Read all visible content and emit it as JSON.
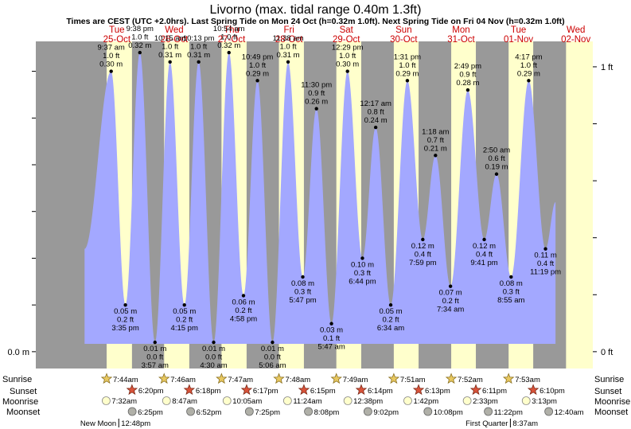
{
  "title": "Livorno (max. tidal range 0.40m 1.3ft)",
  "subtitle": "Times are CEST (UTC +2.0hrs). Last Spring Tide on Mon 24 Oct (h=0.32m 1.0ft). Next Spring Tide on Fri 04 Nov (h=0.32m 1.0ft)",
  "colors": {
    "night": "#999999",
    "day": "#ffffcc",
    "tide": "#a3a8ff",
    "day_label": "#cc0000"
  },
  "row_labels": {
    "sunrise": "Sunrise",
    "sunset": "Sunset",
    "moonrise": "Moonrise",
    "moonset": "Moonset"
  },
  "chart_data": {
    "type": "area",
    "title": "Livorno (max. tidal range 0.40m 1.3ft)",
    "x_unit": "hours since 25-Oct 00:00 CEST",
    "xlim": [
      -21.9,
      211.1
    ],
    "ylim": [
      -0.018,
      0.332
    ],
    "y_axis_left": {
      "label": "0.0 m",
      "value": 0.0
    },
    "y_axis_right": [
      {
        "label": "0 ft",
        "value": 0.0
      },
      {
        "label": "1 ft",
        "value": 0.3048
      }
    ],
    "days": [
      {
        "dow": "Tue",
        "date": "25-Oct",
        "x": 12
      },
      {
        "dow": "Wed",
        "date": "26-Oct",
        "x": 36
      },
      {
        "dow": "Thu",
        "date": "27-Oct",
        "x": 60
      },
      {
        "dow": "Fri",
        "date": "28-Oct",
        "x": 84
      },
      {
        "dow": "Sat",
        "date": "29-Oct",
        "x": 108
      },
      {
        "dow": "Sun",
        "date": "30-Oct",
        "x": 132
      },
      {
        "dow": "Mon",
        "date": "31-Oct",
        "x": 156
      },
      {
        "dow": "Tue",
        "date": "01-Nov",
        "x": 180
      },
      {
        "dow": "Wed",
        "date": "02-Nov",
        "x": 204
      }
    ],
    "daylight": [
      [
        7.73,
        18.33
      ],
      [
        31.77,
        42.3
      ],
      [
        55.78,
        66.28
      ],
      [
        79.8,
        90.25
      ],
      [
        103.82,
        114.23
      ],
      [
        127.85,
        138.22
      ],
      [
        151.87,
        162.18
      ],
      [
        175.88,
        186.17
      ],
      [
        199.9,
        211.1
      ]
    ],
    "tides": [
      {
        "x": 9.62,
        "y": 0.3,
        "time": "9:37 am",
        "ft": "1.0 ft",
        "m": "0.30 m",
        "type": "high"
      },
      {
        "x": 15.58,
        "y": 0.05,
        "time": "3:35 pm",
        "ft": "0.2 ft",
        "m": "0.05 m",
        "type": "low"
      },
      {
        "x": 21.63,
        "y": 0.32,
        "time": "9:38 pm",
        "ft": "1.0 ft",
        "m": "0.32 m",
        "type": "high"
      },
      {
        "x": 27.95,
        "y": 0.01,
        "time": "3:57 am",
        "ft": "0.0 ft",
        "m": "0.01 m",
        "type": "low"
      },
      {
        "x": 34.25,
        "y": 0.31,
        "time": "10:15 am",
        "ft": "1.0 ft",
        "m": "0.31 m",
        "type": "high"
      },
      {
        "x": 40.25,
        "y": 0.05,
        "time": "4:15 pm",
        "ft": "0.2 ft",
        "m": "0.05 m",
        "type": "low"
      },
      {
        "x": 46.22,
        "y": 0.31,
        "time": "10:13 pm",
        "ft": "1.0 ft",
        "m": "0.31 m",
        "type": "high"
      },
      {
        "x": 52.5,
        "y": 0.01,
        "time": "4:30 am",
        "ft": "0.0 ft",
        "m": "0.01 m",
        "type": "low"
      },
      {
        "x": 58.9,
        "y": 0.32,
        "time": "10:54 am",
        "ft": "1.0 ft",
        "m": "0.32 m",
        "type": "high"
      },
      {
        "x": 64.97,
        "y": 0.06,
        "time": "4:58 pm",
        "ft": "0.2 ft",
        "m": "0.06 m",
        "type": "low"
      },
      {
        "x": 70.82,
        "y": 0.29,
        "time": "10:49 pm",
        "ft": "1.0 ft",
        "m": "0.29 m",
        "type": "high"
      },
      {
        "x": 77.1,
        "y": 0.01,
        "time": "5:06 am",
        "ft": "0.0 ft",
        "m": "0.01 m",
        "type": "low"
      },
      {
        "x": 83.63,
        "y": 0.31,
        "time": "11:38 am",
        "ft": "1.0 ft",
        "m": "0.31 m",
        "type": "high"
      },
      {
        "x": 89.78,
        "y": 0.08,
        "time": "5:47 pm",
        "ft": "0.3 ft",
        "m": "0.08 m",
        "type": "low"
      },
      {
        "x": 95.5,
        "y": 0.26,
        "time": "11:30 pm",
        "ft": "0.9 ft",
        "m": "0.26 m",
        "type": "high"
      },
      {
        "x": 101.78,
        "y": 0.03,
        "time": "5:47 am",
        "ft": "0.1 ft",
        "m": "0.03 m",
        "type": "low"
      },
      {
        "x": 108.48,
        "y": 0.3,
        "time": "12:29 pm",
        "ft": "1.0 ft",
        "m": "0.30 m",
        "type": "high"
      },
      {
        "x": 114.73,
        "y": 0.1,
        "time": "6:44 pm",
        "ft": "0.3 ft",
        "m": "0.10 m",
        "type": "low"
      },
      {
        "x": 120.28,
        "y": 0.24,
        "time": "12:17 am",
        "ft": "0.8 ft",
        "m": "0.24 m",
        "type": "high"
      },
      {
        "x": 126.57,
        "y": 0.05,
        "time": "6:34 am",
        "ft": "0.2 ft",
        "m": "0.05 m",
        "type": "low"
      },
      {
        "x": 133.52,
        "y": 0.29,
        "time": "1:31 pm",
        "ft": "1.0 ft",
        "m": "0.29 m",
        "type": "high"
      },
      {
        "x": 139.98,
        "y": 0.12,
        "time": "7:59 pm",
        "ft": "0.4 ft",
        "m": "0.12 m",
        "type": "low"
      },
      {
        "x": 145.3,
        "y": 0.21,
        "time": "1:18 am",
        "ft": "0.7 ft",
        "m": "0.21 m",
        "type": "high"
      },
      {
        "x": 151.57,
        "y": 0.07,
        "time": "7:34 am",
        "ft": "0.2 ft",
        "m": "0.07 m",
        "type": "low"
      },
      {
        "x": 158.82,
        "y": 0.28,
        "time": "2:49 pm",
        "ft": "0.9 ft",
        "m": "0.28 m",
        "type": "high"
      },
      {
        "x": 165.68,
        "y": 0.12,
        "time": "9:41 pm",
        "ft": "0.4 ft",
        "m": "0.12 m",
        "type": "low"
      },
      {
        "x": 170.83,
        "y": 0.19,
        "time": "2:50 am",
        "ft": "0.6 ft",
        "m": "0.19 m",
        "type": "high"
      },
      {
        "x": 176.92,
        "y": 0.08,
        "time": "8:55 am",
        "ft": "0.3 ft",
        "m": "0.08 m",
        "type": "low"
      },
      {
        "x": 184.28,
        "y": 0.29,
        "time": "4:17 pm",
        "ft": "1.0 ft",
        "m": "0.29 m",
        "type": "high"
      },
      {
        "x": 191.32,
        "y": 0.11,
        "time": "11:19 pm",
        "ft": "0.4 ft",
        "m": "0.11 m",
        "type": "low"
      }
    ],
    "tide_curve_start": {
      "x": -1.5,
      "y": 0.11
    },
    "tide_curve_end": {
      "x": 195.5,
      "y": 0.16
    },
    "sunrise": [
      {
        "x": 7.73,
        "time": "7:44am"
      },
      {
        "x": 31.77,
        "time": "7:46am"
      },
      {
        "x": 55.78,
        "time": "7:47am"
      },
      {
        "x": 79.8,
        "time": "7:48am"
      },
      {
        "x": 103.82,
        "time": "7:49am"
      },
      {
        "x": 127.85,
        "time": "7:51am"
      },
      {
        "x": 151.87,
        "time": "7:52am"
      },
      {
        "x": 175.88,
        "time": "7:53am"
      }
    ],
    "sunset": [
      {
        "x": 18.33,
        "time": "6:20pm"
      },
      {
        "x": 42.3,
        "time": "6:18pm"
      },
      {
        "x": 66.28,
        "time": "6:17pm"
      },
      {
        "x": 90.25,
        "time": "6:15pm"
      },
      {
        "x": 114.23,
        "time": "6:14pm"
      },
      {
        "x": 138.22,
        "time": "6:13pm"
      },
      {
        "x": 162.18,
        "time": "6:11pm"
      },
      {
        "x": 186.17,
        "time": "6:10pm"
      }
    ],
    "moonrise": [
      {
        "x": 7.53,
        "time": "7:32am"
      },
      {
        "x": 32.78,
        "time": "8:47am"
      },
      {
        "x": 58.08,
        "time": "10:05am"
      },
      {
        "x": 83.4,
        "time": "11:24am"
      },
      {
        "x": 108.63,
        "time": "12:38pm"
      },
      {
        "x": 133.7,
        "time": "1:42pm"
      },
      {
        "x": 158.55,
        "time": "2:33pm"
      },
      {
        "x": 183.22,
        "time": "3:13pm"
      }
    ],
    "moonset": [
      {
        "x": 18.42,
        "time": "6:25pm"
      },
      {
        "x": 42.87,
        "time": "6:52pm"
      },
      {
        "x": 67.42,
        "time": "7:25pm"
      },
      {
        "x": 92.13,
        "time": "8:08pm"
      },
      {
        "x": 117.03,
        "time": "9:02pm"
      },
      {
        "x": 142.13,
        "time": "10:08pm"
      },
      {
        "x": 167.37,
        "time": "11:22pm"
      },
      {
        "x": 192.67,
        "time": "12:40am"
      }
    ],
    "moon_phases": [
      {
        "x": 12.8,
        "label": "New Moon",
        "time": "12:48pm"
      },
      {
        "x": 176.62,
        "label": "First Quarter",
        "time": "8:37am"
      }
    ]
  }
}
